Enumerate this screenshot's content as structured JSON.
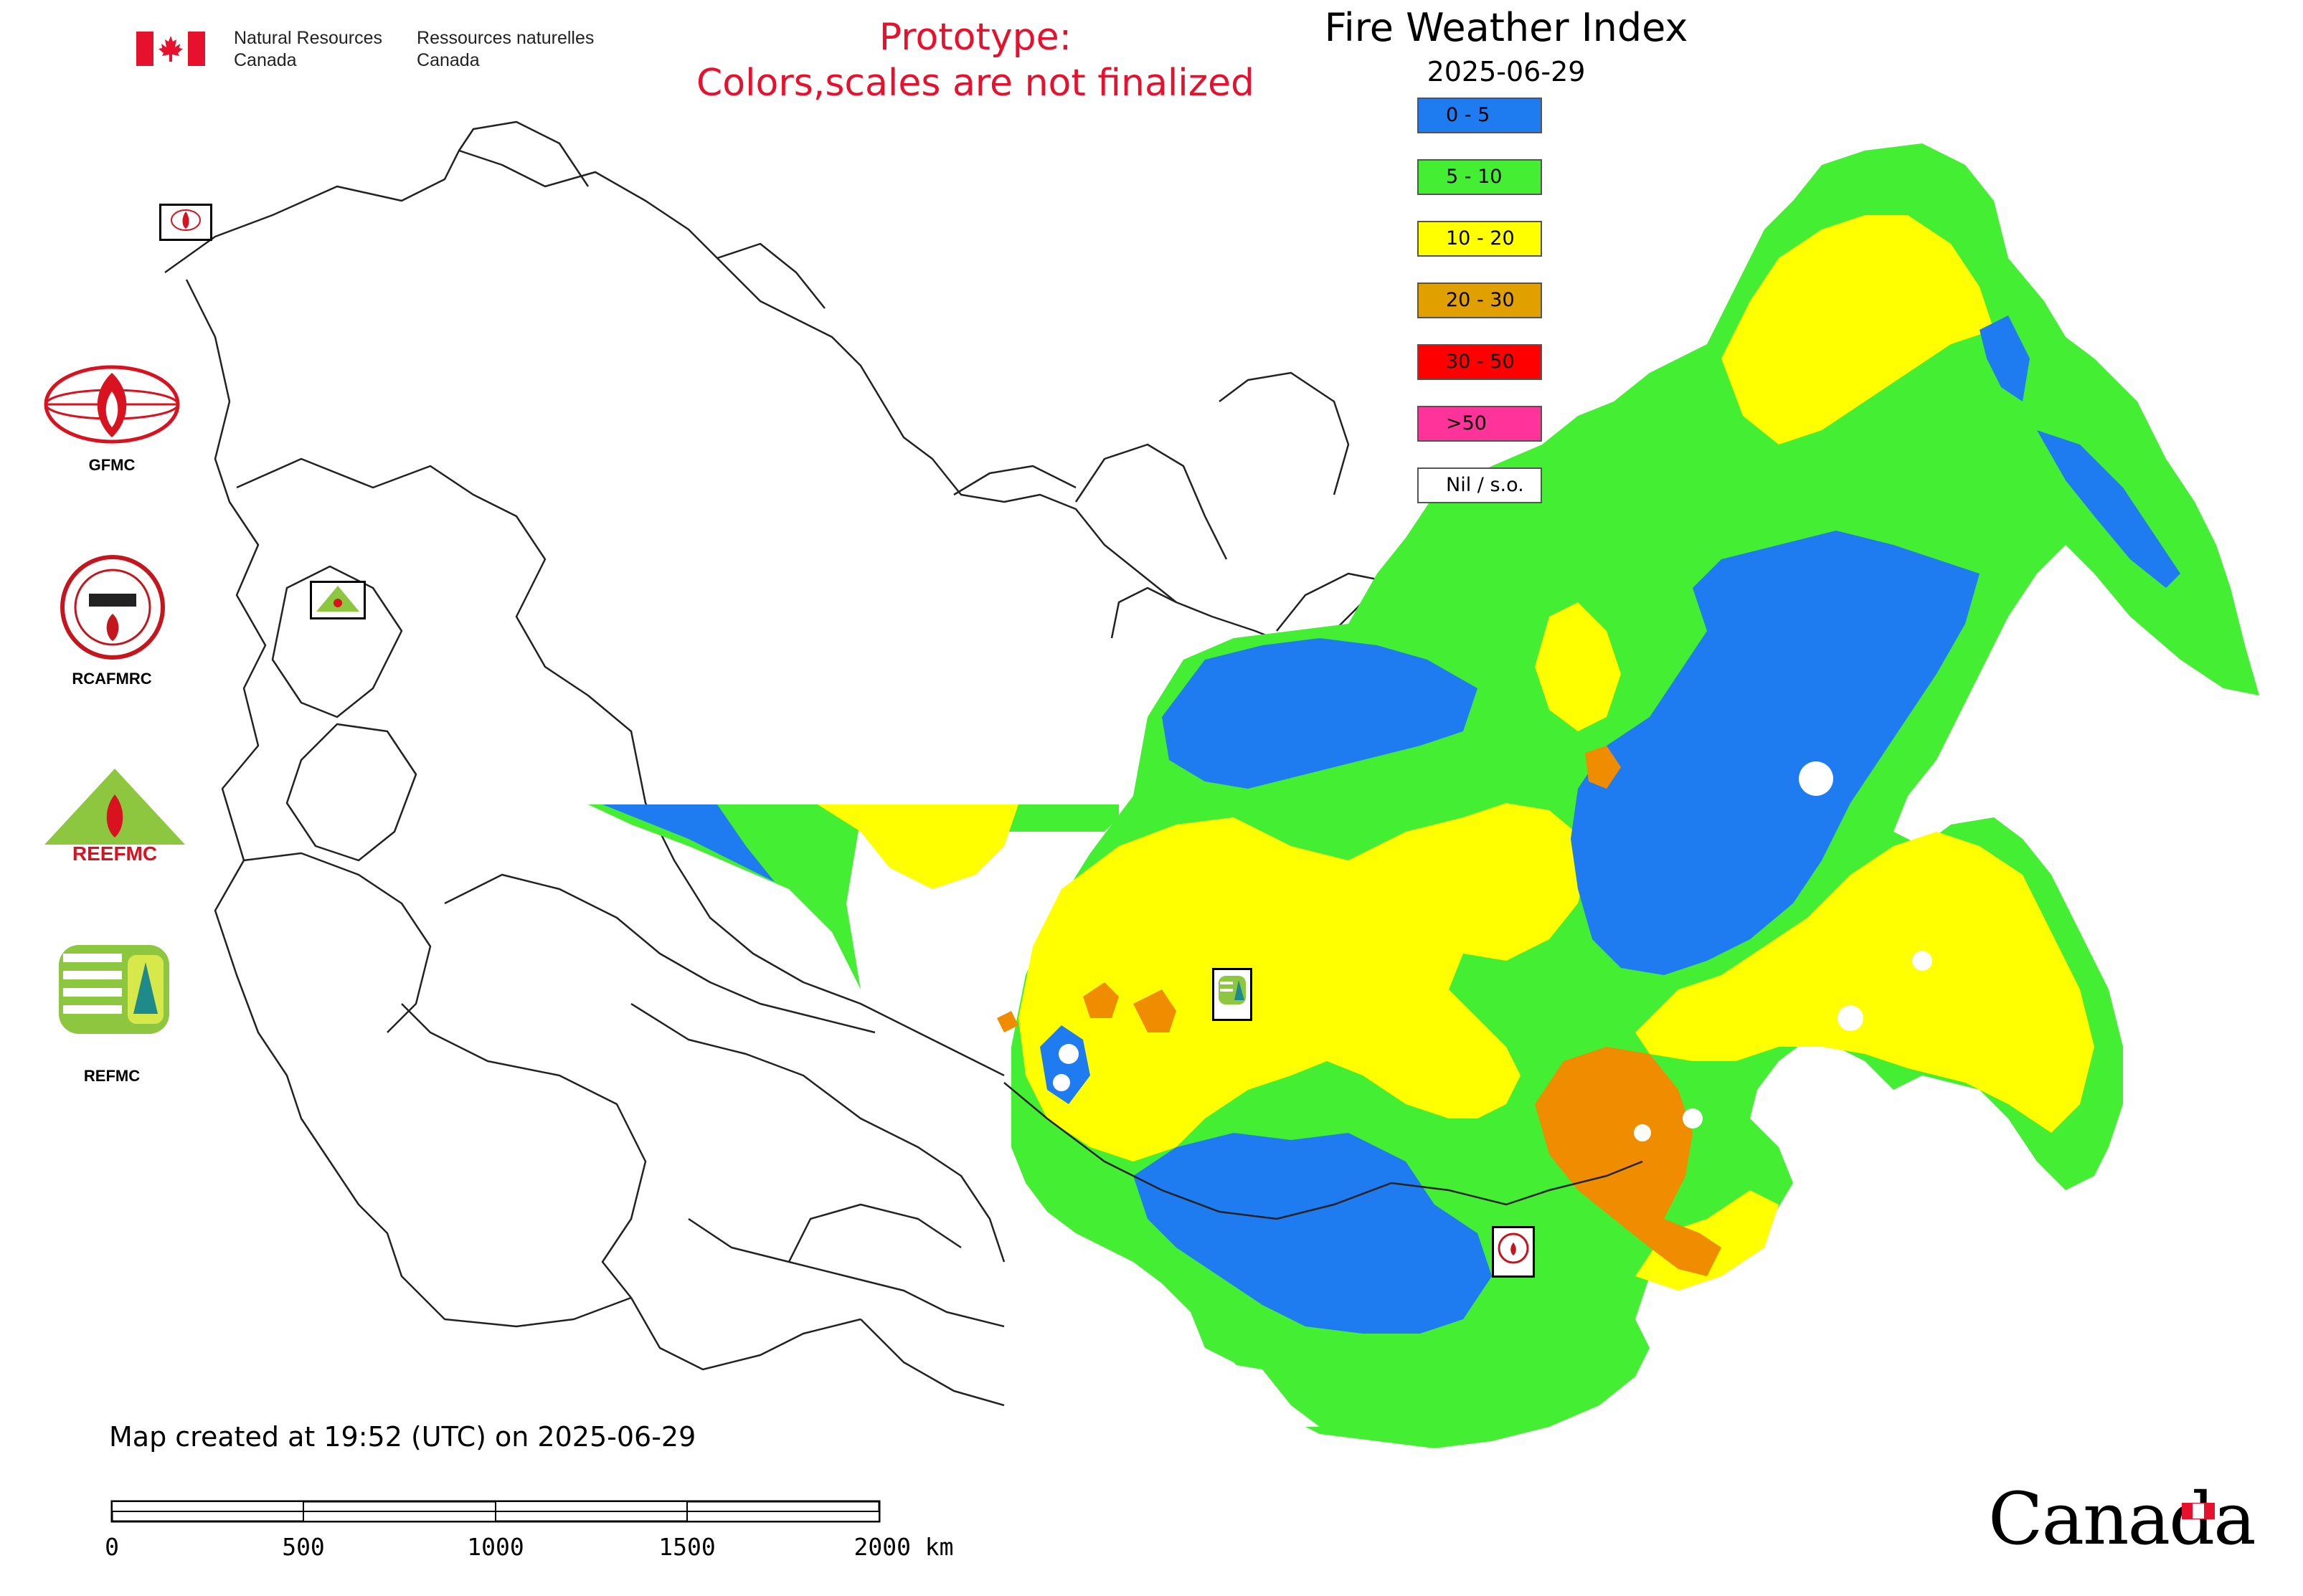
{
  "header": {
    "agency_en_line1": "Natural Resources",
    "agency_en_line2": "Canada",
    "agency_fr_line1": "Ressources naturelles",
    "agency_fr_line2": "Canada",
    "prototype_line1": "Prototype:",
    "prototype_line2": "Colors,scales are not finalized"
  },
  "map": {
    "title": "Fire Weather Index",
    "date": "2025-06-29",
    "created_note": "Map created at 19:52 (UTC) on 2025-06-29"
  },
  "legend": [
    {
      "label": "0 - 5",
      "color": "#1e7cf0"
    },
    {
      "label": "5 - 10",
      "color": "#44ee33"
    },
    {
      "label": "10 - 20",
      "color": "#ffff00"
    },
    {
      "label": "20 - 30",
      "color": "#e0a000"
    },
    {
      "label": "30 - 50",
      "color": "#ff0000"
    },
    {
      "label": ">50",
      "color": "#ff3399"
    },
    {
      "label": "Nil / s.o.",
      "color": "#ffffff"
    }
  ],
  "agencies": [
    {
      "label": "GFMC"
    },
    {
      "label": "RCAFMRC"
    },
    {
      "label": "REEFMC"
    },
    {
      "label": "REFMC"
    }
  ],
  "scale_bar": {
    "labels": [
      "0",
      "500",
      "1000",
      "1500",
      "2000 km"
    ]
  },
  "footer": {
    "wordmark": "Canada"
  },
  "colors": {
    "accent_red": "#e8112d",
    "nil": "#ffffff",
    "outline": "#000000"
  },
  "icons": [
    "canada-flag-icon",
    "maple-leaf-icon",
    "gfmc-logo-icon",
    "rcafmrc-logo-icon",
    "reefmc-logo-icon",
    "refmc-logo-icon"
  ]
}
